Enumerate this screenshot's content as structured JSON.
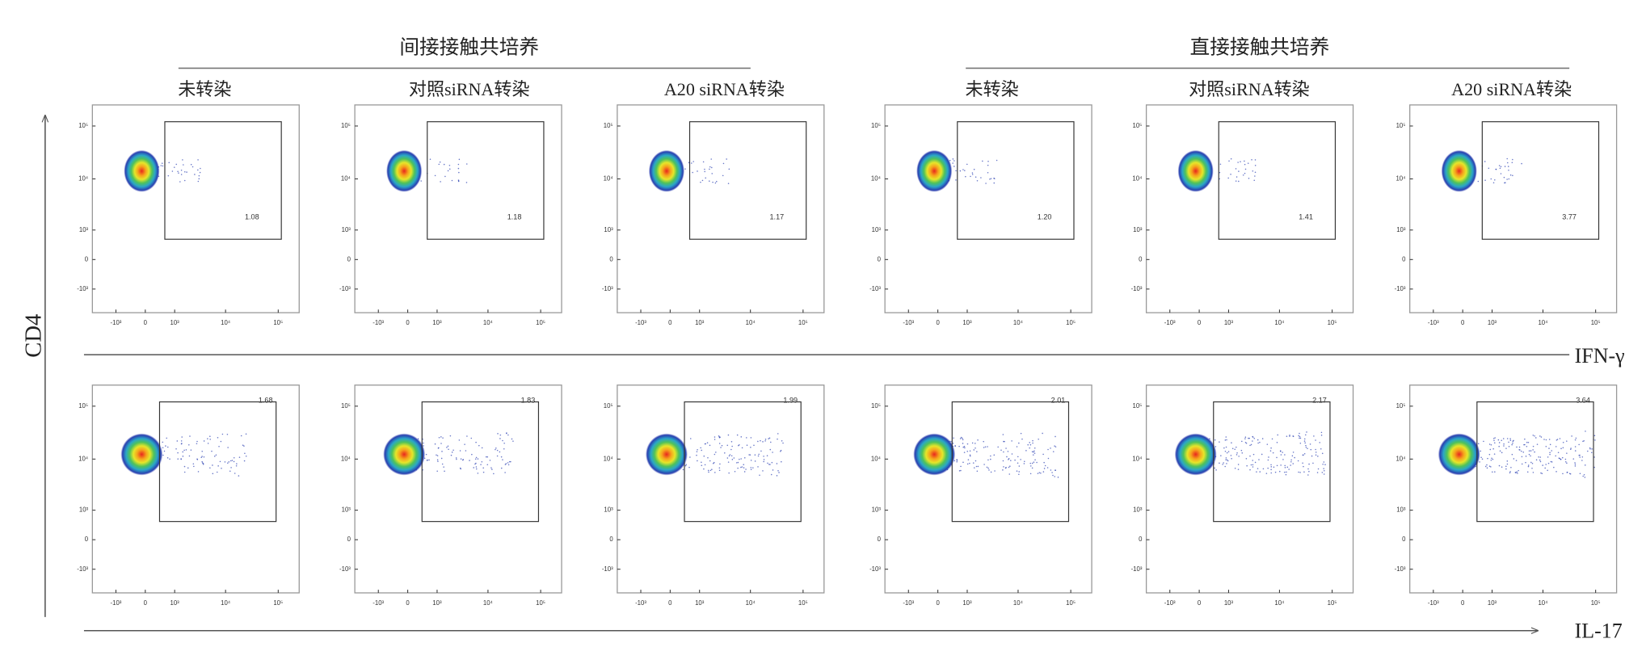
{
  "figure": {
    "type": "flow-cytometry-grid",
    "y_label": "CD4",
    "groups": [
      {
        "title": "间接接触共培养",
        "columns": [
          "未转染",
          "对照siRNA转染",
          "A20 siRNA转染"
        ]
      },
      {
        "title": "直接接触共培养",
        "columns": [
          "未转染",
          "对照siRNA转染",
          "A20 siRNA转染"
        ]
      }
    ],
    "rows": [
      {
        "x_label": "IFN-γ",
        "values": [
          1.08,
          1.18,
          1.17,
          1.2,
          1.41,
          3.77
        ],
        "value_labels": [
          "1.08",
          "1.18",
          "1.17",
          "1.20",
          "1.41",
          "3.77"
        ]
      },
      {
        "x_label": "IL-17",
        "values": [
          1.68,
          1.83,
          1.99,
          2.01,
          2.17,
          3.64
        ],
        "value_labels": [
          "1.68",
          "1.83",
          "1.99",
          "2.01",
          "2.17",
          "3.64"
        ]
      }
    ],
    "scale": "biexponential",
    "xlim": [
      -3000,
      250000
    ],
    "ylim": [
      -3000,
      250000
    ],
    "xticks": [
      {
        "value": -1000,
        "label": "-10³"
      },
      0,
      {
        "value": 1000,
        "label": "10³"
      },
      {
        "value": 10000,
        "label": "10⁴"
      },
      {
        "value": 100000,
        "label": "10⁵"
      }
    ],
    "yticks": [
      {
        "value": -1000,
        "label": "-10³"
      },
      0,
      {
        "value": 1000,
        "label": "10³"
      },
      {
        "value": 10000,
        "label": "10⁴"
      },
      {
        "value": 100000,
        "label": "10⁵"
      }
    ]
  }
}
